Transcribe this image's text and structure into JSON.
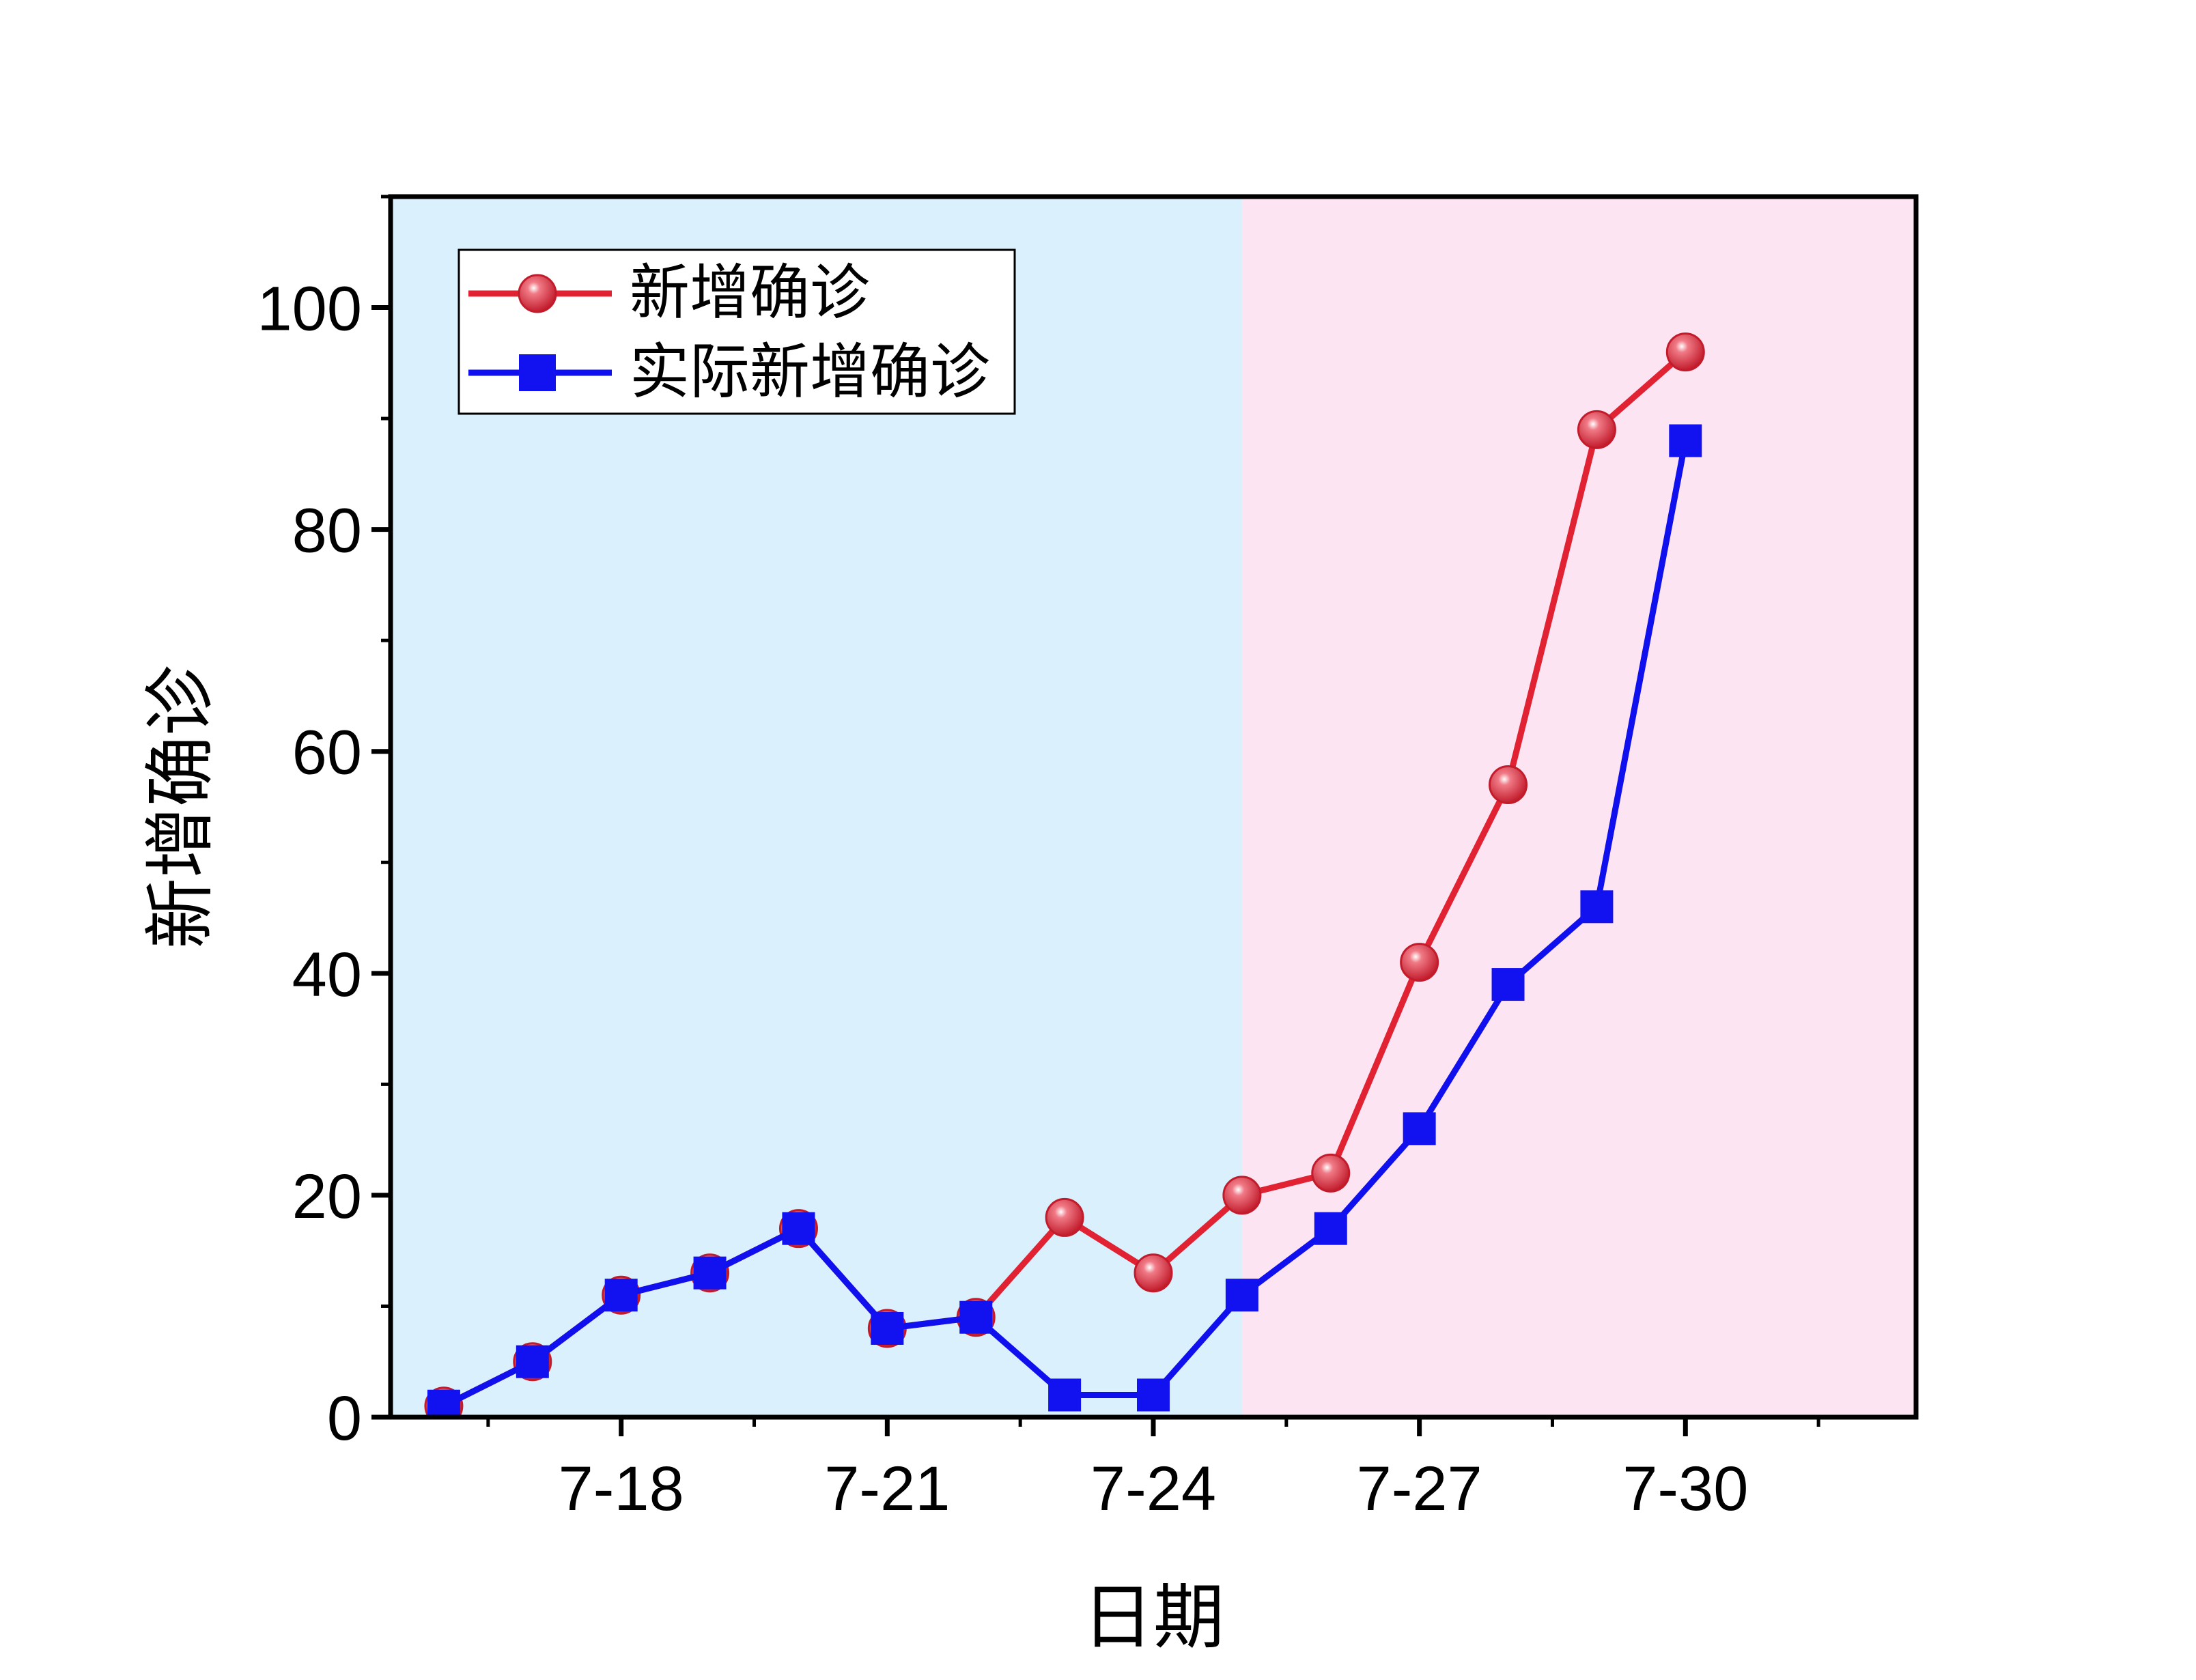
{
  "chart_data": {
    "type": "line",
    "xlabel": "日期",
    "ylabel": "新增确诊",
    "x_day_range": [
      15.4,
      32.6
    ],
    "ylim": [
      0,
      110
    ],
    "x_ticks": [
      {
        "day": 18,
        "label": "7-18"
      },
      {
        "day": 21,
        "label": "7-21"
      },
      {
        "day": 24,
        "label": "7-24"
      },
      {
        "day": 27,
        "label": "7-27"
      },
      {
        "day": 30,
        "label": "7-30"
      }
    ],
    "y_ticks": [
      0,
      20,
      40,
      60,
      80,
      100
    ],
    "regions": [
      {
        "from_day": 15.4,
        "to_day": 25.0,
        "color": "#daf0fc"
      },
      {
        "from_day": 25.0,
        "to_day": 32.6,
        "color": "#fde4f2"
      }
    ],
    "legend_position": "top-left",
    "series": [
      {
        "name": "新增确诊",
        "marker": "circle",
        "color": "#e02232",
        "days": [
          16,
          17,
          18,
          19,
          20,
          21,
          22,
          23,
          24,
          25,
          26,
          27,
          28,
          29,
          30
        ],
        "values": [
          1,
          5,
          11,
          13,
          17,
          8,
          9,
          18,
          13,
          20,
          22,
          41,
          57,
          89,
          96
        ]
      },
      {
        "name": "实际新增确诊",
        "marker": "square",
        "color": "#1010ee",
        "days": [
          16,
          17,
          18,
          19,
          20,
          21,
          22,
          23,
          24,
          25,
          26,
          27,
          28,
          29,
          30
        ],
        "values": [
          1,
          5,
          11,
          13,
          17,
          8,
          9,
          2,
          2,
          11,
          17,
          26,
          39,
          46,
          88
        ]
      }
    ]
  }
}
